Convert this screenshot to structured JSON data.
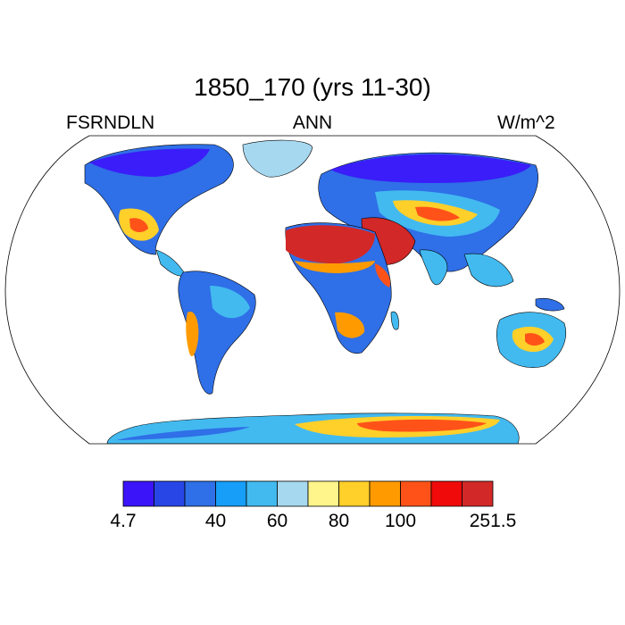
{
  "title": "1850_170 (yrs 11-30)",
  "left_label": "FSRNDLN",
  "center_label": "ANN",
  "right_label": "W/m^2",
  "colorbar": {
    "colors": [
      "#3c14fa",
      "#2846e6",
      "#2f6fe7",
      "#169ef8",
      "#42baf0",
      "#a6d8f0",
      "#fff58a",
      "#ffcf2a",
      "#ff9b00",
      "#ff5219",
      "#f00a0a",
      "#d22828"
    ],
    "tick_labels": [
      "4.7",
      "40",
      "60",
      "80",
      "100",
      "251.5"
    ]
  },
  "colors": {
    "ocean": "#ffffff",
    "coast": "#000000"
  }
}
